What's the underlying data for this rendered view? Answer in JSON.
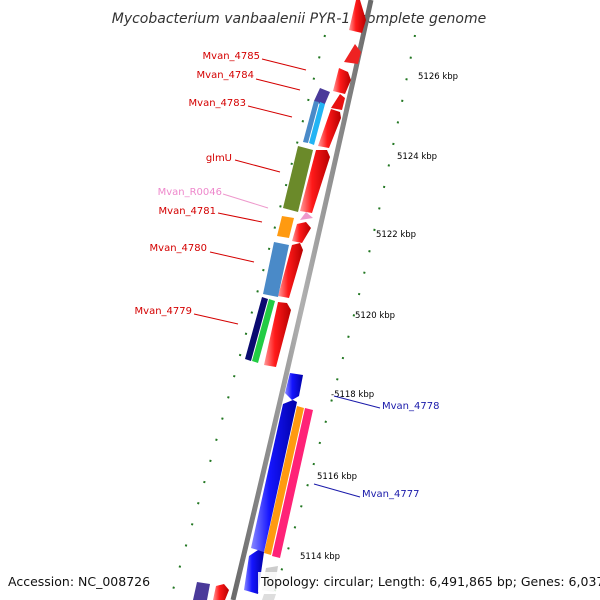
{
  "title": "Mycobacterium vanbaalenii PYR-1, complete genome",
  "footer": {
    "accession": "Accession: NC_008726",
    "summary": "Topology: circular; Length: 6,491,865 bp; Genes: 6,037"
  },
  "kbp_ticks": [
    {
      "label": "5126 kbp"
    },
    {
      "label": "5124 kbp"
    },
    {
      "label": "5122 kbp"
    },
    {
      "label": "5120 kbp"
    },
    {
      "label": "-5118 kbp"
    },
    {
      "label": "5116 kbp"
    },
    {
      "label": "5114 kbp"
    }
  ],
  "gene_labels": [
    {
      "name": "Mvan_4785",
      "color": "#d40000"
    },
    {
      "name": "Mvan_4784",
      "color": "#d40000"
    },
    {
      "name": "Mvan_4783",
      "color": "#d40000"
    },
    {
      "name": "glmU",
      "color": "#d40000"
    },
    {
      "name": "Mvan_R0046",
      "color": "#ee88cc"
    },
    {
      "name": "Mvan_4781",
      "color": "#d40000"
    },
    {
      "name": "Mvan_4780",
      "color": "#d40000"
    },
    {
      "name": "Mvan_4779",
      "color": "#d40000"
    },
    {
      "name": "Mvan_4778",
      "color": "#1a1aaa"
    },
    {
      "name": "Mvan_4777",
      "color": "#1a1aaa"
    }
  ],
  "colors": {
    "forward_gene": "#ee1111",
    "reverse_gene": "#1111ee",
    "backbone": "#888888",
    "tick_green": "#227722"
  }
}
